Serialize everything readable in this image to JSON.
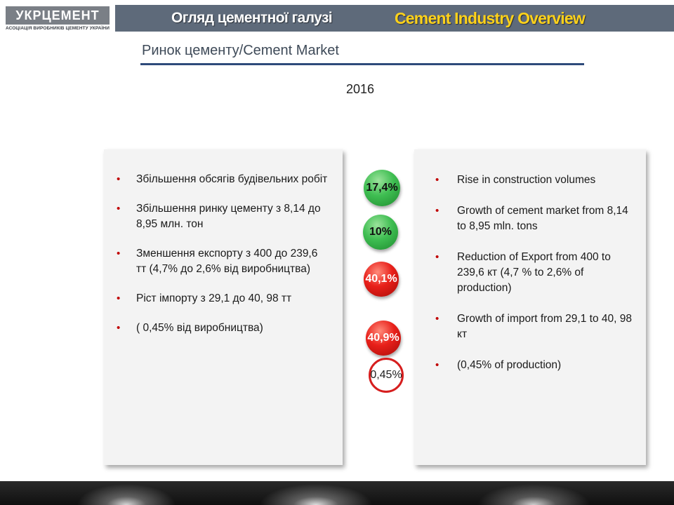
{
  "logo": {
    "name": "УКРЦЕМЕНТ",
    "tagline": "АСОЦІАЦІЯ ВИРОБНИКІВ ЦЕМЕНТУ УКРАЇНИ"
  },
  "header": {
    "title_ua": "Огляд цементної галузі",
    "title_en": "Cement Industry Overview"
  },
  "subtitle": "Ринок цементу/Cement Market",
  "year": "2016",
  "left_bullets": [
    "Збільшення обсягів будівельних робіт",
    "Збільшення ринку цементу з 8,14 до 8,95  млн. тон",
    "Зменшення експорту  з  400  до 239,6 тт (4,7% до 2,6% від виробництва)",
    "Ріст імпорту з 29,1 до  40, 98 тт",
    "( 0,45% від виробництва)"
  ],
  "indicators": [
    {
      "label": "17,4%",
      "color": "green"
    },
    {
      "label": "10%",
      "color": "green"
    },
    {
      "label": "40,1%",
      "color": "red"
    },
    {
      "label": "40,9%",
      "color": "red"
    },
    {
      "label": "0,45%",
      "color": "red-ring"
    }
  ],
  "right_bullets": [
    "Rise in construction volumes",
    "Growth of cement market from 8,14  to 8,95 mln. tons",
    "Reduction of Export from 400 to 239,6 кт (4,7 % to 2,6% of production)",
    "Growth of import from 29,1 to 40, 98 кт",
    "(0,45% of production)"
  ],
  "colors": {
    "header_bg": "#5e6a7a",
    "header_en_text": "#ffd21a",
    "bullet": "#c00000",
    "green_indicator": "#3fbe52",
    "red_indicator": "#e8201a",
    "rule": "#2e4a7a"
  }
}
